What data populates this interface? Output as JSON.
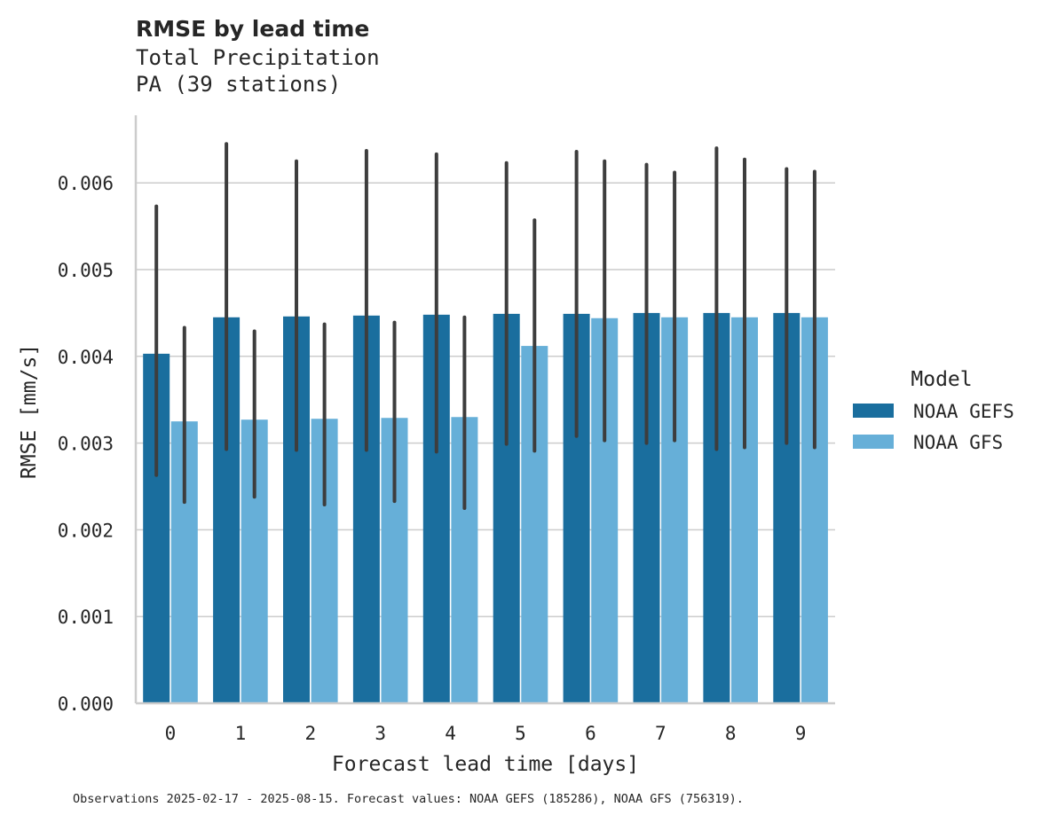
{
  "chart_data": {
    "type": "bar",
    "title": "RMSE by lead time",
    "subtitle_lines": [
      "Total Precipitation",
      "PA (39 stations)"
    ],
    "xlabel": "Forecast lead time [days]",
    "ylabel": "RMSE [mm/s]",
    "categories": [
      "0",
      "1",
      "2",
      "3",
      "4",
      "5",
      "6",
      "7",
      "8",
      "9"
    ],
    "ylim": [
      0,
      0.00675
    ],
    "yticks": [
      "0.000",
      "0.001",
      "0.002",
      "0.003",
      "0.004",
      "0.005",
      "0.006"
    ],
    "ytick_values": [
      0,
      0.001,
      0.002,
      0.003,
      0.004,
      0.005,
      0.006
    ],
    "grid": "horizontal",
    "legend": {
      "title": "Model",
      "placement": "right"
    },
    "series": [
      {
        "name": "NOAA GEFS",
        "color": "#1a6e9e",
        "values": [
          0.00403,
          0.00445,
          0.00446,
          0.00447,
          0.00448,
          0.00449,
          0.00449,
          0.0045,
          0.0045,
          0.0045
        ],
        "err_low": [
          0.00263,
          0.00293,
          0.00292,
          0.00292,
          0.0029,
          0.00299,
          0.00308,
          0.003,
          0.00293,
          0.003
        ],
        "err_high": [
          0.00573,
          0.00645,
          0.00625,
          0.00637,
          0.00633,
          0.00623,
          0.00636,
          0.00621,
          0.0064,
          0.00616
        ]
      },
      {
        "name": "NOAA GFS",
        "color": "#66afd8",
        "values": [
          0.00325,
          0.00327,
          0.00328,
          0.00329,
          0.0033,
          0.00412,
          0.00444,
          0.00445,
          0.00445,
          0.00445
        ],
        "err_low": [
          0.00232,
          0.00238,
          0.00229,
          0.00233,
          0.00225,
          0.00291,
          0.00303,
          0.00303,
          0.00295,
          0.00295
        ],
        "err_high": [
          0.00433,
          0.00429,
          0.00437,
          0.00439,
          0.00445,
          0.00557,
          0.00625,
          0.00612,
          0.00627,
          0.00613
        ]
      }
    ],
    "caption": "Observations 2025-02-17 - 2025-08-15. Forecast values: NOAA GEFS (185286), NOAA GFS (756319)."
  }
}
